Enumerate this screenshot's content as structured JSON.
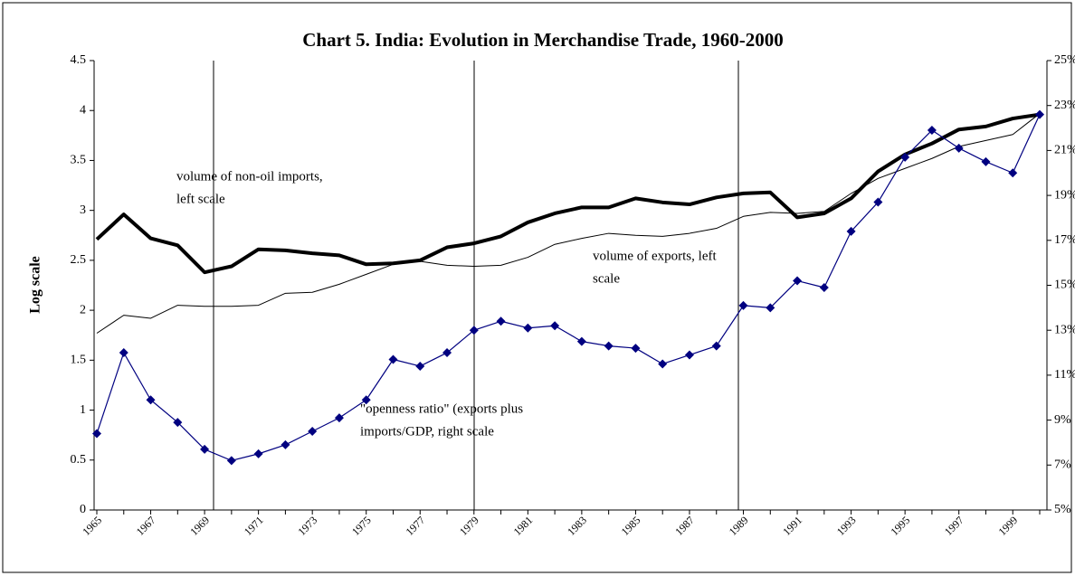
{
  "chart_data": {
    "type": "line",
    "title": "Chart 5. India: Evolution in Merchandise Trade, 1960-2000",
    "y_label": "Log scale",
    "categories": [
      "1965",
      null,
      "1967",
      null,
      "1969",
      null,
      "1971",
      null,
      "1973",
      null,
      "1975",
      null,
      "1977",
      null,
      "1979",
      null,
      "1981",
      null,
      "1983",
      null,
      "1985",
      null,
      "1987",
      null,
      "1989",
      null,
      "1991",
      null,
      "1993",
      null,
      "1995",
      null,
      "1997",
      null,
      "1999",
      null
    ],
    "ylim": [
      0,
      4.5
    ],
    "yticks": [
      0,
      0.5,
      1,
      1.5,
      2,
      2.5,
      3,
      3.5,
      4,
      4.5
    ],
    "y2lim": [
      5,
      25
    ],
    "y2ticks": [
      {
        "value": 5,
        "label": "5%"
      },
      {
        "value": 7,
        "label": "7%"
      },
      {
        "value": 9,
        "label": "9%"
      },
      {
        "value": 11,
        "label": "11%"
      },
      {
        "value": 13,
        "label": "13%"
      },
      {
        "value": 15,
        "label": "15%"
      },
      {
        "value": 17,
        "label": "17%"
      },
      {
        "value": 19,
        "label": "19%"
      },
      {
        "value": 21,
        "label": "21%"
      },
      {
        "value": 23,
        "label": "23%"
      },
      {
        "value": 25,
        "label": "25%"
      }
    ],
    "series": [
      {
        "color": "#000000",
        "width": 4,
        "values": [
          2.71,
          2.96,
          2.72,
          2.65,
          2.38,
          2.44,
          2.61,
          2.6,
          2.57,
          2.55,
          2.46,
          2.47,
          2.5,
          2.63,
          2.67,
          2.74,
          2.88,
          2.97,
          3.03,
          3.03,
          3.12,
          3.08,
          3.06,
          3.13,
          3.17,
          3.18,
          2.93,
          2.97,
          3.12,
          3.39,
          3.56,
          3.67,
          3.81,
          3.84,
          3.92,
          3.96
        ]
      },
      {
        "color": "#000000",
        "width": 1,
        "values": [
          1.77,
          1.95,
          1.92,
          2.05,
          2.04,
          2.04,
          2.05,
          2.17,
          2.18,
          2.26,
          2.36,
          2.46,
          2.49,
          2.45,
          2.44,
          2.45,
          2.53,
          2.66,
          2.72,
          2.77,
          2.75,
          2.74,
          2.77,
          2.82,
          2.94,
          2.98,
          2.97,
          2.99,
          3.17,
          3.32,
          3.42,
          3.52,
          3.64,
          3.7,
          3.76,
          3.97
        ]
      },
      {
        "color": "#000080",
        "width": 1.2,
        "axis": "y2",
        "marker": "diamond",
        "values": [
          8.4,
          12.0,
          9.9,
          8.9,
          7.7,
          7.2,
          7.5,
          7.9,
          8.5,
          9.1,
          9.9,
          11.7,
          11.4,
          12.0,
          13.0,
          13.4,
          13.1,
          13.2,
          12.5,
          12.3,
          12.2,
          11.5,
          11.9,
          12.3,
          14.1,
          14.0,
          15.2,
          14.9,
          17.4,
          18.7,
          20.7,
          21.9,
          21.1,
          20.5,
          20.0,
          22.6
        ]
      }
    ],
    "annotations": [
      {
        "lines": [
          "volume of non-oil imports,",
          "left scale"
        ]
      },
      {
        "lines": [
          "volume of exports, left",
          "scale"
        ]
      },
      {
        "lines": [
          "\"openness ratio\" (exports plus",
          "imports/GDP, right scale"
        ]
      }
    ]
  }
}
